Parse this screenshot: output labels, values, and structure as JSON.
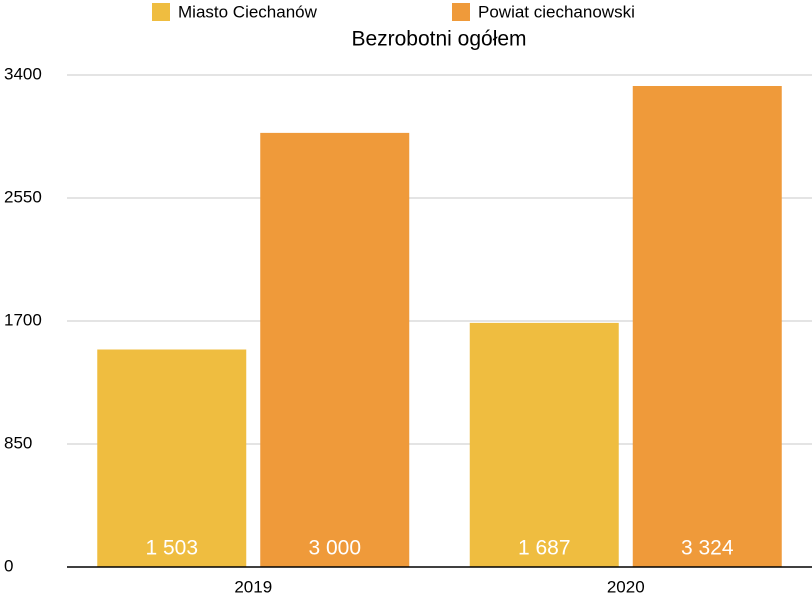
{
  "chart_data": {
    "type": "bar",
    "title": "Bezrobotni ogółem",
    "categories": [
      "2019",
      "2020"
    ],
    "series": [
      {
        "name": "Miasto Ciechanów",
        "color": "#efbd40",
        "values": [
          1503,
          1687
        ],
        "value_labels": [
          "1 503",
          "1 687"
        ]
      },
      {
        "name": "Powiat ciechanowski",
        "color": "#ef9a3a",
        "values": [
          3000,
          3324
        ],
        "value_labels": [
          "3 000",
          "3 324"
        ]
      }
    ],
    "ylim": [
      0,
      3400
    ],
    "yticks": [
      0,
      850,
      1700,
      2550,
      3400
    ],
    "grid": true
  }
}
